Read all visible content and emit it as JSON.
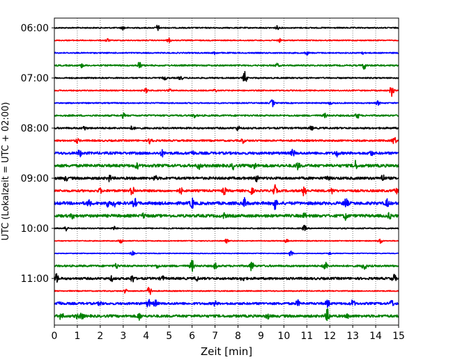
{
  "chart_data": {
    "type": "line",
    "xlabel": "Zeit  [min]",
    "ylabel": "UTC (Lokalzeit = UTC + 02:00)",
    "xlim": [
      0,
      15
    ],
    "x_ticks": [
      "0",
      "1",
      "2",
      "3",
      "4",
      "5",
      "6",
      "7",
      "8",
      "9",
      "10",
      "11",
      "12",
      "13",
      "14",
      "15"
    ],
    "y_ticks": [
      "06:00",
      "07:00",
      "08:00",
      "09:00",
      "10:00",
      "11:00"
    ],
    "vertical_grid": "dotted",
    "trace_start": "06:00",
    "trace_interval_minutes": 15,
    "trace_count": 24,
    "colors": [
      "#000000",
      "#ff0000",
      "#0000ff",
      "#008000"
    ],
    "traces": [
      {
        "start": "06:00",
        "noise": 0.8,
        "events": [
          [
            3.0,
            2.5
          ],
          [
            4.5,
            4.0
          ],
          [
            9.7,
            2.5
          ]
        ]
      },
      {
        "start": "06:15",
        "noise": 0.7,
        "events": [
          [
            2.3,
            2.5
          ],
          [
            5.0,
            3.0
          ],
          [
            9.8,
            2.5
          ]
        ]
      },
      {
        "start": "06:30",
        "noise": 0.8,
        "events": [
          [
            7.0,
            2.0
          ],
          [
            11.0,
            2.5
          ],
          [
            13.4,
            2.0
          ]
        ]
      },
      {
        "start": "06:45",
        "noise": 1.0,
        "events": [
          [
            1.2,
            2.5
          ],
          [
            3.7,
            5.0
          ],
          [
            9.7,
            2.5
          ],
          [
            13.5,
            5.0
          ]
        ]
      },
      {
        "start": "07:00",
        "noise": 0.9,
        "events": [
          [
            4.8,
            2.5
          ],
          [
            5.5,
            3.0
          ],
          [
            8.3,
            9.0
          ]
        ]
      },
      {
        "start": "07:15",
        "noise": 0.8,
        "events": [
          [
            4.0,
            3.0
          ],
          [
            5.0,
            3.0
          ],
          [
            7.0,
            2.0
          ],
          [
            14.7,
            8.0
          ]
        ]
      },
      {
        "start": "07:30",
        "noise": 0.8,
        "events": [
          [
            9.5,
            5.5
          ],
          [
            12.0,
            2.0
          ],
          [
            14.1,
            3.0
          ]
        ]
      },
      {
        "start": "07:45",
        "noise": 1.1,
        "events": [
          [
            3.0,
            3.0
          ],
          [
            6.1,
            3.0
          ],
          [
            11.8,
            2.5
          ],
          [
            13.2,
            4.0
          ]
        ]
      },
      {
        "start": "08:00",
        "noise": 1.2,
        "events": [
          [
            1.3,
            2.5
          ],
          [
            3.4,
            3.0
          ],
          [
            8.0,
            3.0
          ],
          [
            11.2,
            2.5
          ]
        ]
      },
      {
        "start": "08:15",
        "noise": 1.2,
        "events": [
          [
            1.0,
            3.0
          ],
          [
            4.2,
            6.5
          ],
          [
            8.2,
            3.0
          ],
          [
            14.8,
            6.0
          ]
        ]
      },
      {
        "start": "08:30",
        "noise": 1.8,
        "events": [
          [
            1.1,
            4.5
          ],
          [
            4.7,
            4.0
          ],
          [
            6.0,
            3.0
          ],
          [
            10.4,
            4.5
          ],
          [
            12.3,
            4.0
          ],
          [
            13.8,
            3.0
          ]
        ]
      },
      {
        "start": "08:45",
        "noise": 2.0,
        "events": [
          [
            3.6,
            3.5
          ],
          [
            6.3,
            4.0
          ],
          [
            7.8,
            4.0
          ],
          [
            8.7,
            5.0
          ],
          [
            10.6,
            4.5
          ],
          [
            13.1,
            6.5
          ]
        ]
      },
      {
        "start": "09:00",
        "noise": 1.8,
        "events": [
          [
            0.5,
            3.0
          ],
          [
            2.4,
            4.0
          ],
          [
            4.4,
            3.0
          ],
          [
            8.8,
            4.0
          ],
          [
            11.9,
            3.0
          ],
          [
            14.3,
            5.0
          ]
        ]
      },
      {
        "start": "09:15",
        "noise": 1.6,
        "events": [
          [
            2.0,
            3.0
          ],
          [
            3.4,
            7.0
          ],
          [
            5.5,
            4.0
          ],
          [
            7.4,
            4.5
          ],
          [
            8.6,
            4.0
          ],
          [
            9.6,
            7.5
          ],
          [
            10.9,
            9.0
          ],
          [
            12.1,
            4.0
          ],
          [
            14.9,
            3.5
          ]
        ]
      },
      {
        "start": "09:30",
        "noise": 2.1,
        "events": [
          [
            1.5,
            4.0
          ],
          [
            2.3,
            4.5
          ],
          [
            2.6,
            4.0
          ],
          [
            3.5,
            6.0
          ],
          [
            6.0,
            7.0
          ],
          [
            8.3,
            6.5
          ],
          [
            9.6,
            8.5
          ],
          [
            12.7,
            7.0
          ],
          [
            14.5,
            5.0
          ]
        ]
      },
      {
        "start": "09:45",
        "noise": 2.0,
        "events": [
          [
            0.8,
            3.0
          ],
          [
            3.9,
            3.0
          ],
          [
            7.4,
            3.0
          ],
          [
            10.9,
            3.0
          ],
          [
            12.7,
            5.0
          ],
          [
            14.6,
            3.5
          ]
        ]
      },
      {
        "start": "10:00",
        "noise": 0.8,
        "events": [
          [
            0.5,
            4.0
          ],
          [
            2.6,
            2.5
          ],
          [
            10.9,
            4.0
          ]
        ]
      },
      {
        "start": "10:15",
        "noise": 0.6,
        "events": [
          [
            2.9,
            5.5
          ],
          [
            7.5,
            2.5
          ],
          [
            10.1,
            2.5
          ],
          [
            14.2,
            4.0
          ]
        ]
      },
      {
        "start": "10:30",
        "noise": 0.5,
        "events": [
          [
            3.4,
            3.0
          ],
          [
            10.3,
            4.5
          ],
          [
            12.0,
            2.0
          ]
        ]
      },
      {
        "start": "10:45",
        "noise": 1.3,
        "events": [
          [
            2.7,
            3.5
          ],
          [
            4.5,
            2.5
          ],
          [
            6.0,
            8.0
          ],
          [
            7.0,
            4.0
          ],
          [
            8.6,
            7.0
          ],
          [
            11.8,
            7.0
          ],
          [
            13.5,
            6.5
          ]
        ]
      },
      {
        "start": "11:00",
        "noise": 1.6,
        "events": [
          [
            0.1,
            6.0
          ],
          [
            2.5,
            3.0
          ],
          [
            3.4,
            5.0
          ],
          [
            4.7,
            3.5
          ],
          [
            6.2,
            3.0
          ],
          [
            8.2,
            3.0
          ],
          [
            14.8,
            5.0
          ]
        ]
      },
      {
        "start": "11:15",
        "noise": 0.7,
        "events": [
          [
            3.1,
            3.0
          ],
          [
            4.1,
            4.0
          ],
          [
            4.2,
            3.5
          ]
        ]
      },
      {
        "start": "11:30",
        "noise": 1.6,
        "events": [
          [
            0.2,
            3.0
          ],
          [
            2.0,
            3.0
          ],
          [
            4.1,
            5.5
          ],
          [
            4.4,
            4.5
          ],
          [
            7.0,
            3.0
          ],
          [
            10.6,
            4.0
          ],
          [
            11.9,
            5.5
          ],
          [
            13.0,
            5.0
          ],
          [
            14.7,
            4.5
          ]
        ]
      },
      {
        "start": "11:45",
        "noise": 1.8,
        "events": [
          [
            0.3,
            5.0
          ],
          [
            1.0,
            3.0
          ],
          [
            1.2,
            3.5
          ],
          [
            3.7,
            4.5
          ],
          [
            9.3,
            3.0
          ],
          [
            11.9,
            9.0
          ],
          [
            12.8,
            3.0
          ]
        ]
      }
    ]
  }
}
